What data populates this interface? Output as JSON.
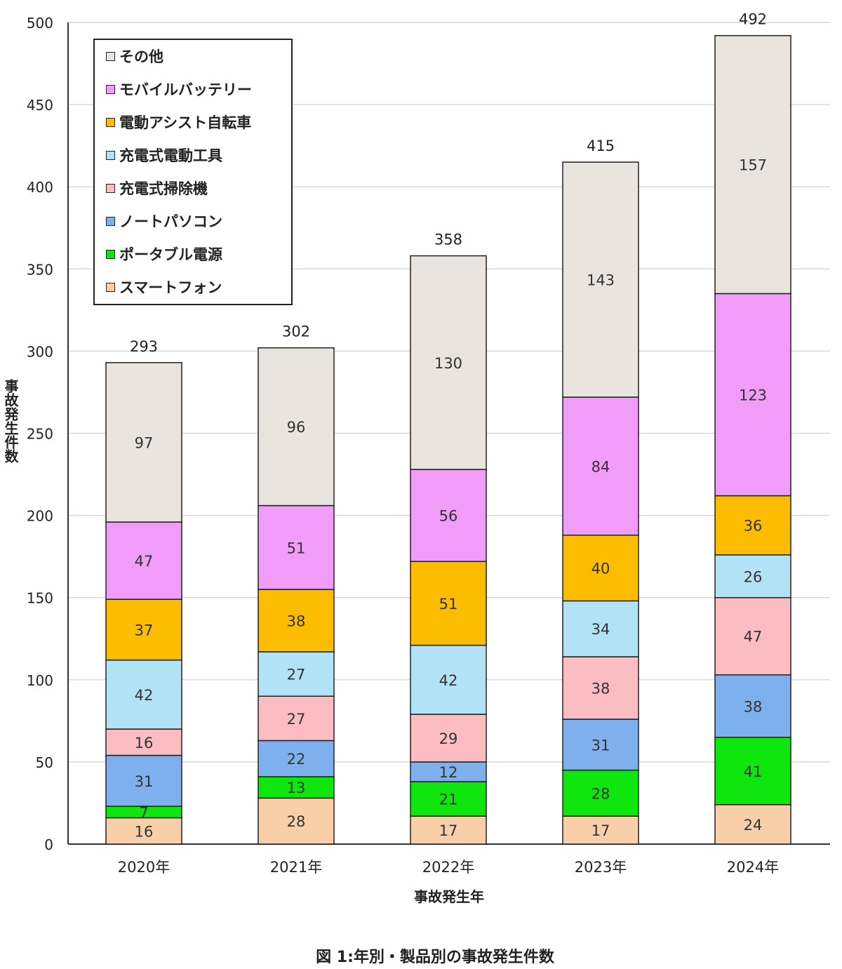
{
  "chart_data": {
    "type": "bar",
    "stacked": true,
    "categories": [
      "2020年",
      "2021年",
      "2022年",
      "2023年",
      "2024年"
    ],
    "totals": [
      293,
      302,
      358,
      415,
      492
    ],
    "series": [
      {
        "name": "スマートフォン",
        "color": "#f8cfa8",
        "values": [
          16,
          28,
          17,
          17,
          24
        ]
      },
      {
        "name": "ポータブル電源",
        "color": "#0ee60e",
        "values": [
          7,
          13,
          21,
          28,
          41
        ]
      },
      {
        "name": "ノートパソコン",
        "color": "#7fb0ee",
        "values": [
          31,
          22,
          12,
          31,
          38
        ]
      },
      {
        "name": "充電式掃除機",
        "color": "#fbbcc2",
        "values": [
          16,
          27,
          29,
          38,
          47
        ]
      },
      {
        "name": "充電式電動工具",
        "color": "#b2e2f6",
        "values": [
          42,
          27,
          42,
          34,
          26
        ]
      },
      {
        "name": "電動アシスト自転車",
        "color": "#fcbd00",
        "values": [
          37,
          38,
          51,
          40,
          36
        ]
      },
      {
        "name": "モバイルバッテリー",
        "color": "#f09cf8",
        "values": [
          47,
          51,
          56,
          84,
          123
        ]
      },
      {
        "name": "その他",
        "color": "#e9e4de",
        "values": [
          97,
          96,
          130,
          143,
          157
        ]
      }
    ],
    "xlabel": "事故発生年",
    "ylabel": "事故発生件数",
    "ylim": [
      0,
      500
    ],
    "yticks": [
      0,
      50,
      100,
      150,
      200,
      250,
      300,
      350,
      400,
      450,
      500
    ],
    "grid": true,
    "legend_position": "top-left",
    "legend_order": [
      "その他",
      "モバイルバッテリー",
      "電動アシスト自転車",
      "充電式電動工具",
      "充電式掃除機",
      "ノートパソコン",
      "ポータブル電源",
      "スマートフォン"
    ]
  },
  "caption": "図 1:年別・製品別の事故発生件数"
}
